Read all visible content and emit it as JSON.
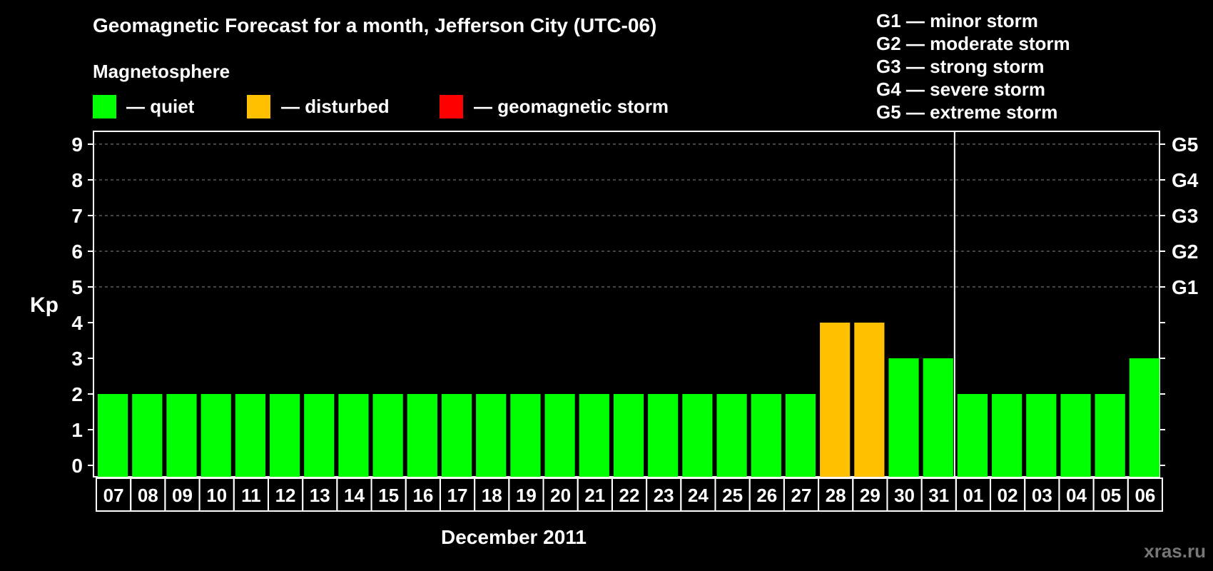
{
  "header": {
    "title": "Geomagnetic Forecast for a month, Jefferson City (UTC-06)",
    "magnetosphere_label": "Magnetosphere"
  },
  "legend": {
    "items": [
      {
        "label": "— quiet",
        "color": "#00ff00"
      },
      {
        "label": "— disturbed",
        "color": "#ffc000"
      },
      {
        "label": "— geomagnetic storm",
        "color": "#ff0000"
      }
    ]
  },
  "storm_scale": [
    "G1 — minor storm",
    "G2 — moderate storm",
    "G3 — strong storm",
    "G4 — severe storm",
    "G5 — extreme storm"
  ],
  "watermark": "xras.ru",
  "chart_data": {
    "type": "bar",
    "title": "Geomagnetic Forecast for a month, Jefferson City (UTC-06)",
    "xlabel": "December 2011",
    "ylabel": "Kp",
    "ylim": [
      0,
      9
    ],
    "y_ticks": [
      "0",
      "1",
      "2",
      "3",
      "4",
      "5",
      "6",
      "7",
      "8",
      "9"
    ],
    "right_ticks": [
      {
        "kp": 5,
        "label": "G1"
      },
      {
        "kp": 6,
        "label": "G2"
      },
      {
        "kp": 7,
        "label": "G3"
      },
      {
        "kp": 8,
        "label": "G4"
      },
      {
        "kp": 9,
        "label": "G5"
      }
    ],
    "grid": "dashed horizontal at Kp 5-9",
    "month_separator_after": "31",
    "categories": [
      "07",
      "08",
      "09",
      "10",
      "11",
      "12",
      "13",
      "14",
      "15",
      "16",
      "17",
      "18",
      "19",
      "20",
      "21",
      "22",
      "23",
      "24",
      "25",
      "26",
      "27",
      "28",
      "29",
      "30",
      "31",
      "01",
      "02",
      "03",
      "04",
      "05",
      "06"
    ],
    "values": [
      2,
      2,
      2,
      2,
      2,
      2,
      2,
      2,
      2,
      2,
      2,
      2,
      2,
      2,
      2,
      2,
      2,
      2,
      2,
      2,
      2,
      4,
      4,
      3,
      3,
      2,
      2,
      2,
      2,
      2,
      3
    ],
    "colors": {
      "quiet": "#00ff00",
      "disturbed": "#ffc000",
      "storm": "#ff0000"
    }
  }
}
